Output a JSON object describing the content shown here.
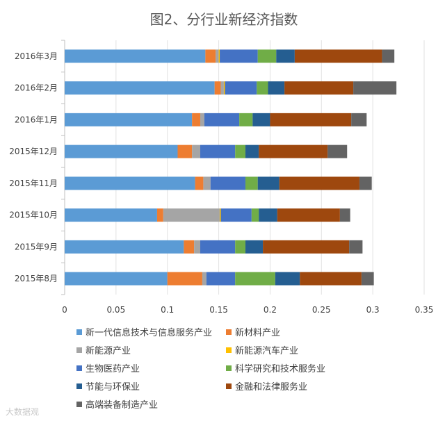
{
  "chart_data": {
    "type": "bar",
    "orientation": "horizontal",
    "stacked": true,
    "title": "图2、分行业新经济指数",
    "categories": [
      "2016年3月",
      "2016年2月",
      "2016年1月",
      "2015年12月",
      "2015年11月",
      "2015年10月",
      "2015年9月",
      "2015年8月"
    ],
    "xlim": [
      0,
      0.35
    ],
    "xticks": [
      0,
      0.05,
      0.1,
      0.15,
      0.2,
      0.25,
      0.3,
      0.35
    ],
    "xtick_labels": [
      "0",
      "0.05",
      "0.1",
      "0.15",
      "0.2",
      "0.25",
      "0.3",
      "0.35"
    ],
    "grid": true,
    "legend_position": "bottom",
    "series": [
      {
        "name": "新一代信息技术与信息服务产业",
        "color": "#5B9BD5",
        "values": [
          0.137,
          0.146,
          0.124,
          0.11,
          0.127,
          0.09,
          0.116,
          0.1
        ]
      },
      {
        "name": "新材料产业",
        "color": "#ED7D31",
        "values": [
          0.01,
          0.006,
          0.008,
          0.014,
          0.008,
          0.006,
          0.01,
          0.034
        ]
      },
      {
        "name": "新能源产业",
        "color": "#A5A5A5",
        "values": [
          0.003,
          0.003,
          0.004,
          0.008,
          0.007,
          0.055,
          0.006,
          0.004
        ]
      },
      {
        "name": "新能源汽车产业",
        "color": "#FFC000",
        "values": [
          0.001,
          0.001,
          0.0,
          0.0,
          0.0,
          0.001,
          0.0,
          0.0
        ]
      },
      {
        "name": "生物医药产业",
        "color": "#4472C4",
        "values": [
          0.037,
          0.031,
          0.034,
          0.034,
          0.034,
          0.03,
          0.034,
          0.028
        ]
      },
      {
        "name": "科学研究和技术服务业",
        "color": "#70AD47",
        "values": [
          0.018,
          0.011,
          0.013,
          0.01,
          0.012,
          0.007,
          0.01,
          0.039
        ]
      },
      {
        "name": "节能与环保业",
        "color": "#255E91",
        "values": [
          0.018,
          0.016,
          0.017,
          0.013,
          0.021,
          0.018,
          0.017,
          0.024
        ]
      },
      {
        "name": "金融和法律服务业",
        "color": "#9E480E",
        "values": [
          0.085,
          0.067,
          0.079,
          0.067,
          0.078,
          0.061,
          0.084,
          0.06
        ]
      },
      {
        "name": "高端装备制造产业",
        "color": "#636363",
        "values": [
          0.012,
          0.042,
          0.015,
          0.019,
          0.012,
          0.01,
          0.013,
          0.012
        ]
      }
    ]
  },
  "watermark": "大数据观"
}
